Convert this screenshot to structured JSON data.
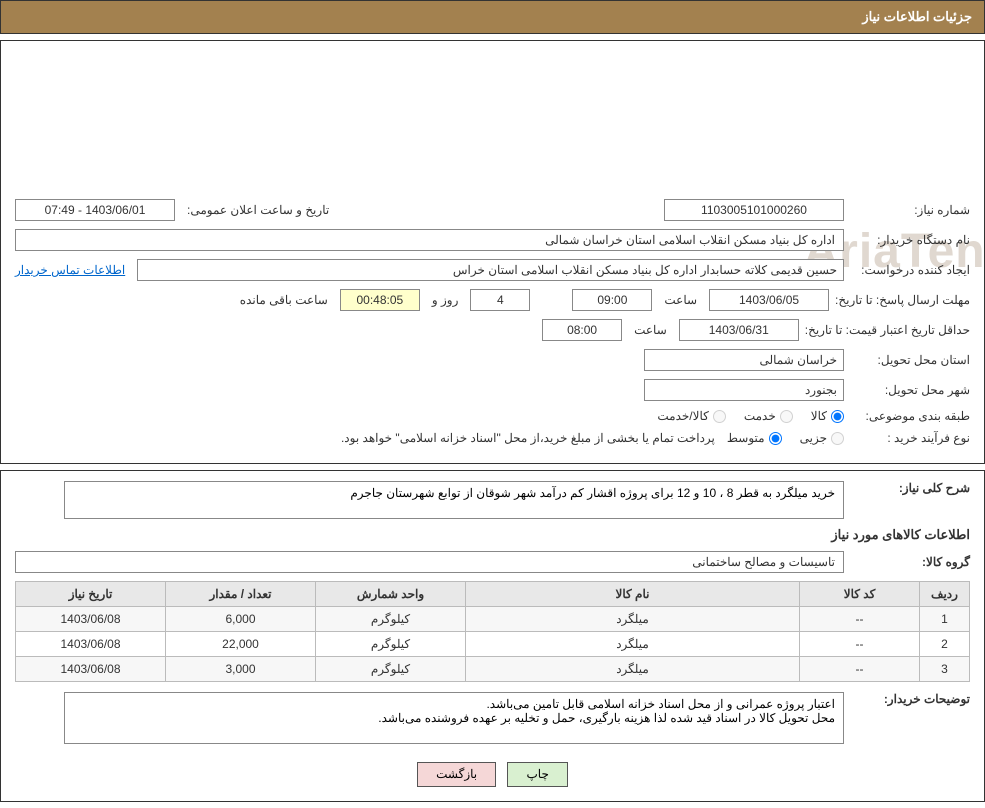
{
  "header": {
    "title": "جزئیات اطلاعات نیاز"
  },
  "fields": {
    "need_number_label": "شماره نیاز:",
    "need_number": "1103005101000260",
    "announce_label": "تاریخ و ساعت اعلان عمومی:",
    "announce_value": "1403/06/01 - 07:49",
    "buyer_org_label": "نام دستگاه خریدار:",
    "buyer_org": "اداره کل بنیاد مسکن انقلاب اسلامی استان خراسان شمالی",
    "requester_label": "ایجاد کننده درخواست:",
    "requester": "حسین قدیمی کلاته حسابدار اداره کل بنیاد مسکن انقلاب اسلامی استان خراس",
    "contact_link": "اطلاعات تماس خریدار",
    "reply_deadline_label": "مهلت ارسال پاسخ:",
    "to_date_label": "تا تاریخ:",
    "reply_date": "1403/06/05",
    "time_label": "ساعت",
    "reply_time": "09:00",
    "days_value": "4",
    "days_label": "روز و",
    "remaining": "00:48:05",
    "remaining_label": "ساعت باقی مانده",
    "price_validity_label": "حداقل تاریخ اعتبار قیمت:",
    "price_date": "1403/06/31",
    "price_time": "08:00",
    "province_label": "استان محل تحویل:",
    "province": "خراسان شمالی",
    "city_label": "شهر محل تحویل:",
    "city": "بجنورد",
    "category_label": "طبقه بندی موضوعی:",
    "cat_goods": "کالا",
    "cat_service": "خدمت",
    "cat_goods_service": "کالا/خدمت",
    "process_label": "نوع فرآیند خرید :",
    "proc_small": "جزیی",
    "proc_medium": "متوسط",
    "process_note": "پرداخت تمام یا بخشی از مبلغ خرید،از محل \"اسناد خزانه اسلامی\" خواهد بود."
  },
  "sections": {
    "desc_label": "شرح کلی نیاز:",
    "desc_text": "خرید میلگرد به قطر 8 ، 10 و 12 برای پروژه اقشار کم درآمد شهر شوقان از توابع شهرستان جاجرم",
    "items_label": "اطلاعات کالاهای مورد نیاز",
    "group_label": "گروه کالا:",
    "group_value": "تاسیسات و مصالح ساختمانی",
    "buyer_notes_label": "توضیحات خریدار:",
    "buyer_notes": "اعتبار پروژه عمرانی و از محل اسناد خزانه اسلامی قابل تامین می‌باشد.\nمحل تحویل کالا در اسناد قید شده لذا هزینه بارگیری، حمل و تخلیه بر عهده فروشنده می‌باشد."
  },
  "table": {
    "columns": [
      "ردیف",
      "کد کالا",
      "نام کالا",
      "واحد شمارش",
      "تعداد / مقدار",
      "تاریخ نیاز"
    ],
    "rows": [
      [
        "1",
        "--",
        "میلگرد",
        "کیلوگرم",
        "6,000",
        "1403/06/08"
      ],
      [
        "2",
        "--",
        "میلگرد",
        "کیلوگرم",
        "22,000",
        "1403/06/08"
      ],
      [
        "3",
        "--",
        "میلگرد",
        "کیلوگرم",
        "3,000",
        "1403/06/08"
      ]
    ],
    "header_bg": "#e8e8e8",
    "border_color": "#bbbbbb"
  },
  "buttons": {
    "print": "چاپ",
    "back": "بازگشت"
  },
  "colors": {
    "header_bg": "#a3814f",
    "header_text": "#ffffff",
    "border": "#333333",
    "link": "#0066cc",
    "btn_print_bg": "#d9f0d0",
    "btn_back_bg": "#f5d7d7",
    "watermark": "#e0d8d0"
  },
  "watermark": {
    "text": "AriaTender.net",
    "shield_stroke": "#d86b4a"
  }
}
